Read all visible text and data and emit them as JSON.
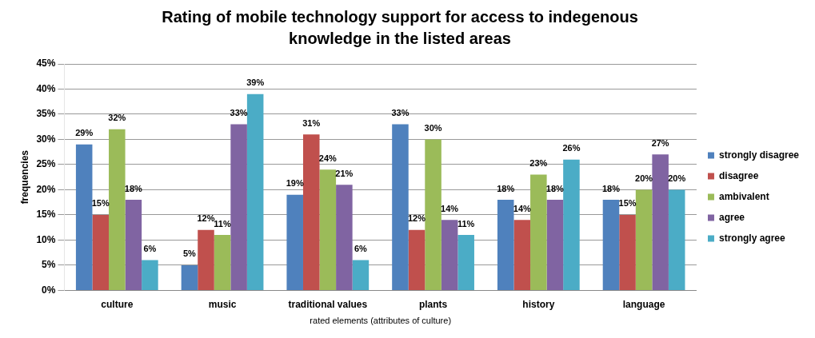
{
  "chart_data": {
    "type": "bar",
    "title": "Rating of mobile technology support for access to indegenous knowledge in the listed areas",
    "xlabel": "rated elements (attributes of culture)",
    "ylabel": "frequencies",
    "categories": [
      "culture",
      "music",
      "traditional values",
      "plants",
      "history",
      "language"
    ],
    "series": [
      {
        "name": "strongly disagree",
        "color": "#4f81bd",
        "values": [
          29,
          5,
          19,
          33,
          18,
          18
        ],
        "value_labels": [
          "29%",
          "5%",
          "19%",
          "33%",
          "18%",
          "18%"
        ]
      },
      {
        "name": "disagree",
        "color": "#c0504d",
        "values": [
          15,
          12,
          31,
          12,
          14,
          15
        ],
        "value_labels": [
          "15%",
          "12%",
          "31%",
          "12%",
          "14%",
          "15%"
        ]
      },
      {
        "name": "ambivalent",
        "color": "#9bbb59",
        "values": [
          32,
          11,
          24,
          30,
          23,
          20
        ],
        "value_labels": [
          "32%",
          "11%",
          "24%",
          "30%",
          "23%",
          "20%"
        ]
      },
      {
        "name": "agree",
        "color": "#8064a2",
        "values": [
          18,
          33,
          21,
          14,
          18,
          27
        ],
        "value_labels": [
          "18%",
          "33%",
          "21%",
          "14%",
          "18%",
          "27%"
        ]
      },
      {
        "name": "strongly agree",
        "color": "#4bacc6",
        "values": [
          6,
          39,
          6,
          11,
          26,
          20
        ],
        "value_labels": [
          "6%",
          "39%",
          "6%",
          "11%",
          "26%",
          "20%"
        ]
      }
    ],
    "ylim": [
      0,
      45
    ],
    "yticks": [
      {
        "value": 0,
        "label": "0%"
      },
      {
        "value": 5,
        "label": "5%"
      },
      {
        "value": 10,
        "label": "10%"
      },
      {
        "value": 15,
        "label": "15%"
      },
      {
        "value": 20,
        "label": "20%"
      },
      {
        "value": 25,
        "label": "25%"
      },
      {
        "value": 30,
        "label": "30%"
      },
      {
        "value": 35,
        "label": "35%"
      },
      {
        "value": 40,
        "label": "40%"
      },
      {
        "value": 45,
        "label": "45%"
      }
    ],
    "grid": "y",
    "legend": "right"
  }
}
